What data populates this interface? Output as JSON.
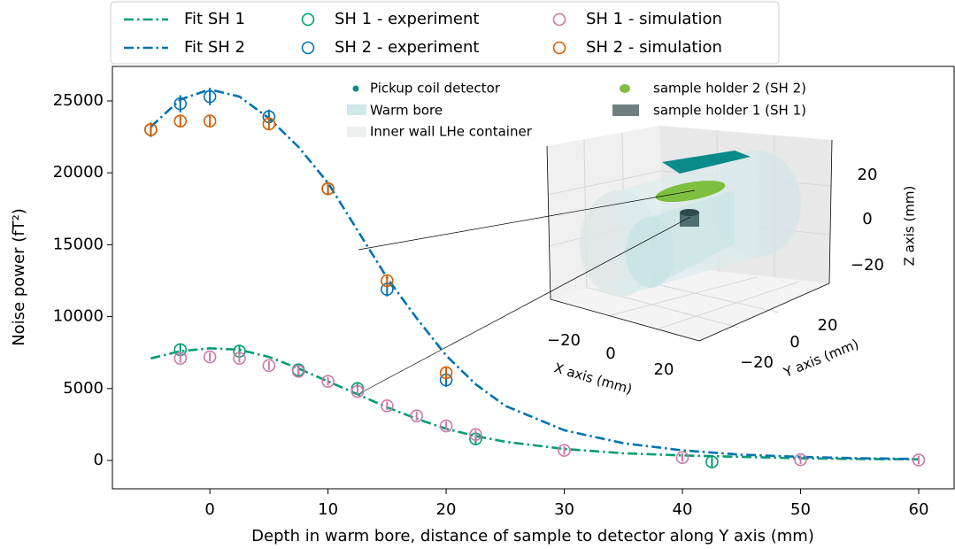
{
  "chart_data": {
    "type": "line",
    "xlabel": "Depth in warm bore, distance of sample to detector along Y axis (mm)",
    "ylabel": "Noise power (fT²)",
    "xlim": [
      -8.25,
      63
    ],
    "ylim": [
      -1970,
      27400
    ],
    "xticks": [
      0,
      10,
      20,
      30,
      40,
      50,
      60
    ],
    "yticks": [
      0,
      5000,
      10000,
      15000,
      20000,
      25000
    ],
    "series": [
      {
        "name": "Fit SH 1",
        "color": "#009e73",
        "style": "dashdot",
        "x": [
          -5,
          -2.5,
          0,
          2.5,
          5,
          7.5,
          10,
          12.5,
          15,
          17.5,
          20,
          22.5,
          25,
          30,
          35,
          40,
          45,
          50,
          55,
          60
        ],
        "values": [
          7100,
          7600,
          7800,
          7700,
          7200,
          6400,
          5500,
          4600,
          3700,
          2900,
          2200,
          1700,
          1300,
          800,
          500,
          350,
          250,
          150,
          100,
          80
        ]
      },
      {
        "name": "Fit SH 2",
        "color": "#0072b2",
        "style": "dashdot",
        "x": [
          -5,
          -2.5,
          0,
          2.5,
          5,
          7.5,
          10,
          12.5,
          15,
          17.5,
          20,
          22.5,
          25,
          30,
          35,
          40,
          45,
          50,
          55,
          60
        ],
        "values": [
          23200,
          25100,
          25800,
          25300,
          23800,
          21800,
          19300,
          16000,
          12700,
          9900,
          7300,
          5300,
          3800,
          2100,
          1200,
          700,
          400,
          250,
          150,
          100
        ]
      },
      {
        "name": "SH 1 - experiment",
        "color": "#009e73",
        "style": "circle",
        "x": [
          -2.5,
          2.5,
          7.5,
          12.5,
          22.5,
          42.5
        ],
        "values": [
          7700,
          7600,
          6300,
          5000,
          1500,
          -100
        ],
        "errors": [
          400,
          400,
          300,
          400,
          400,
          400
        ]
      },
      {
        "name": "SH 2 - experiment",
        "color": "#0072b2",
        "style": "circle",
        "x": [
          -5,
          -2.5,
          0,
          5,
          10,
          15,
          20
        ],
        "values": [
          23000,
          24800,
          25300,
          23900,
          18900,
          11900,
          5600
        ],
        "errors": [
          500,
          600,
          600,
          500,
          400,
          500,
          500
        ]
      },
      {
        "name": "SH 1 - simulation",
        "color": "#cc79a7",
        "style": "circle",
        "x": [
          -2.5,
          0,
          2.5,
          5,
          7.5,
          10,
          12.5,
          15,
          17.5,
          20,
          22.5,
          30,
          40,
          50,
          60
        ],
        "values": [
          7100,
          7200,
          7100,
          6600,
          6200,
          5500,
          4800,
          3800,
          3100,
          2400,
          1800,
          700,
          200,
          50,
          30
        ],
        "errors": [
          300,
          300,
          300,
          300,
          300,
          300,
          300,
          300,
          300,
          300,
          300,
          300,
          300,
          300,
          300
        ]
      },
      {
        "name": "SH 2 - simulation",
        "color": "#d55e00",
        "style": "circle",
        "x": [
          -5,
          -2.5,
          0,
          5,
          10,
          15,
          20
        ],
        "values": [
          23000,
          23600,
          23600,
          23400,
          18900,
          12500,
          6100
        ],
        "errors": [
          400,
          400,
          400,
          400,
          400,
          400,
          400
        ]
      }
    ],
    "inset": {
      "legend": [
        "Pickup coil detector",
        "Warm bore",
        "Inner wall LHe container",
        "sample holder 2 (SH 2)",
        "sample holder 1 (SH 1)"
      ],
      "xlabel": "X axis (mm)",
      "ylabel": "Y axis (mm)",
      "zlabel": "Z axis (mm)",
      "xticks": [
        {
          "value": -20,
          "label": "−20"
        },
        0,
        20
      ],
      "yticks": [
        {
          "value": -20,
          "label": "−20"
        },
        0,
        20
      ],
      "zticks": [
        {
          "value": -20,
          "label": "−20"
        },
        0,
        20
      ]
    }
  }
}
